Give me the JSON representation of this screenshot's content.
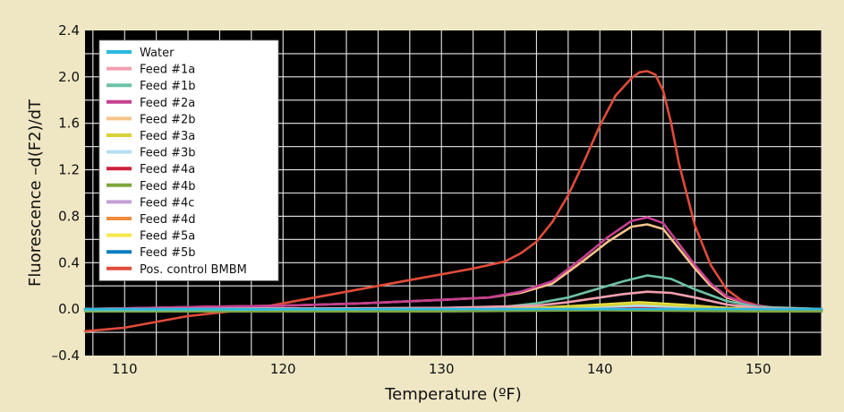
{
  "chart_data": {
    "type": "line",
    "xlabel": "Temperature (ºF)",
    "ylabel": "Fluorescence –d(F2)/dT",
    "xlim": [
      107.5,
      154
    ],
    "ylim": [
      -0.4,
      2.4
    ],
    "xticks": [
      110,
      120,
      130,
      140,
      150
    ],
    "xtick_labels": [
      "110",
      "120",
      "130",
      "140",
      "150"
    ],
    "yticks": [
      -0.4,
      0.0,
      0.4,
      0.8,
      1.2,
      1.6,
      2.0,
      2.4
    ],
    "ytick_labels": [
      "–0.4",
      "0.0",
      "0.4",
      "0.8",
      "1.2",
      "1.6",
      "2.0",
      "2.4"
    ],
    "grid": true,
    "legend_position": "top-left",
    "plot_background": "#000000",
    "figure_background": "#efe6c4",
    "series": [
      {
        "name": "Water",
        "color": "#2ab8df",
        "x": [
          107.5,
          154
        ],
        "y": [
          0.0,
          0.0
        ]
      },
      {
        "name": "Feed #1a",
        "color": "#f2a0b0",
        "x": [
          107.5,
          130,
          136,
          138,
          140,
          141.5,
          143,
          144.5,
          146,
          148,
          150,
          154
        ],
        "y": [
          0.0,
          0.01,
          0.03,
          0.06,
          0.1,
          0.13,
          0.15,
          0.14,
          0.1,
          0.04,
          0.01,
          0.0
        ]
      },
      {
        "name": "Feed #1b",
        "color": "#6cc2a6",
        "x": [
          107.5,
          130,
          134,
          136,
          138,
          140,
          141.5,
          143,
          144.5,
          146,
          148,
          150,
          154
        ],
        "y": [
          -0.01,
          0.0,
          0.02,
          0.05,
          0.1,
          0.18,
          0.24,
          0.29,
          0.26,
          0.17,
          0.07,
          0.02,
          0.0
        ]
      },
      {
        "name": "Feed #2a",
        "color": "#c63f91",
        "x": [
          107.5,
          115,
          120,
          125,
          130,
          133,
          135,
          137,
          139,
          140.5,
          142,
          143,
          144,
          145,
          146,
          147,
          148,
          149.5,
          151,
          154
        ],
        "y": [
          0.0,
          0.02,
          0.03,
          0.05,
          0.08,
          0.1,
          0.15,
          0.24,
          0.45,
          0.62,
          0.76,
          0.79,
          0.74,
          0.56,
          0.38,
          0.22,
          0.11,
          0.04,
          0.01,
          0.0
        ]
      },
      {
        "name": "Feed #2b",
        "color": "#f7c38a",
        "x": [
          107.5,
          115,
          120,
          125,
          130,
          133,
          135,
          137,
          139,
          140.5,
          142,
          143,
          144,
          145,
          146,
          147,
          148,
          149.5,
          151,
          154
        ],
        "y": [
          0.0,
          0.02,
          0.03,
          0.05,
          0.08,
          0.1,
          0.14,
          0.22,
          0.42,
          0.58,
          0.71,
          0.73,
          0.69,
          0.52,
          0.35,
          0.2,
          0.1,
          0.04,
          0.01,
          0.0
        ]
      },
      {
        "name": "Feed #3a",
        "color": "#d7d23a",
        "x": [
          107.5,
          136,
          140,
          142.5,
          145,
          148,
          154
        ],
        "y": [
          0.0,
          0.01,
          0.03,
          0.05,
          0.03,
          0.01,
          0.0
        ]
      },
      {
        "name": "Feed #3b",
        "color": "#b5def2",
        "x": [
          107.5,
          136,
          140,
          142.5,
          145,
          148,
          154
        ],
        "y": [
          0.0,
          0.0,
          0.02,
          0.03,
          0.02,
          0.0,
          0.0
        ]
      },
      {
        "name": "Feed #4a",
        "color": "#cf1f3c",
        "x": [
          107.5,
          138,
          141,
          143,
          145,
          148,
          154
        ],
        "y": [
          0.0,
          0.0,
          0.01,
          0.02,
          0.01,
          0.0,
          0.0
        ]
      },
      {
        "name": "Feed #4b",
        "color": "#7da63c",
        "x": [
          107.5,
          130,
          140,
          150,
          154
        ],
        "y": [
          -0.02,
          -0.02,
          -0.01,
          -0.02,
          -0.02
        ]
      },
      {
        "name": "Feed #4c",
        "color": "#c3a0d6",
        "x": [
          107.5,
          138,
          141,
          143,
          145,
          148,
          154
        ],
        "y": [
          0.0,
          0.01,
          0.03,
          0.04,
          0.03,
          0.01,
          0.0
        ]
      },
      {
        "name": "Feed #4d",
        "color": "#f08a3c",
        "x": [
          107.5,
          138,
          141,
          143,
          145,
          148,
          154
        ],
        "y": [
          0.0,
          0.01,
          0.02,
          0.03,
          0.02,
          0.0,
          0.0
        ]
      },
      {
        "name": "Feed #5a",
        "color": "#f5e84c",
        "x": [
          107.5,
          136,
          140,
          142.5,
          145,
          148,
          154
        ],
        "y": [
          0.0,
          0.01,
          0.04,
          0.06,
          0.04,
          0.01,
          0.0
        ]
      },
      {
        "name": "Feed #5b",
        "color": "#0c7cc0",
        "x": [
          107.5,
          154
        ],
        "y": [
          -0.005,
          -0.005
        ]
      },
      {
        "name": "Pos. control BMBM",
        "color": "#e04b3a",
        "x": [
          107.5,
          110,
          112,
          114,
          116,
          118,
          120,
          122,
          124,
          126,
          128,
          130,
          132,
          134,
          135,
          136,
          137,
          138,
          139,
          140,
          141,
          142,
          142.5,
          143,
          143.5,
          144,
          144.5,
          145,
          146,
          147,
          148,
          149,
          150,
          151,
          152,
          154
        ],
        "y": [
          -0.19,
          -0.16,
          -0.11,
          -0.06,
          -0.03,
          0.0,
          0.05,
          0.1,
          0.15,
          0.2,
          0.25,
          0.3,
          0.35,
          0.41,
          0.48,
          0.58,
          0.75,
          0.98,
          1.27,
          1.58,
          1.84,
          1.99,
          2.04,
          2.05,
          2.02,
          1.88,
          1.6,
          1.25,
          0.72,
          0.38,
          0.17,
          0.07,
          0.03,
          0.01,
          0.0,
          -0.01
        ]
      }
    ]
  }
}
